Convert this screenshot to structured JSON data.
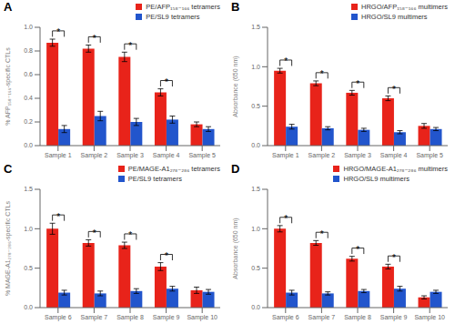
{
  "chart_data": [
    {
      "type": "bar",
      "title": "A",
      "ylabel": "% AFP₁₅₈₋₁₆₆-specific CTLs",
      "categories": [
        "Sample 1",
        "Sample 2",
        "Sample 3",
        "Sample 4",
        "Sample 5"
      ],
      "series": [
        {
          "name": "PE/AFP₁₅₈₋₁₆₆ tetramers",
          "color": "#e8231a",
          "values": [
            0.87,
            0.82,
            0.75,
            0.45,
            0.18
          ],
          "errors": [
            0.03,
            0.03,
            0.04,
            0.03,
            0.02
          ]
        },
        {
          "name": "PE/SL9 tetramers",
          "color": "#2255cc",
          "values": [
            0.14,
            0.25,
            0.2,
            0.22,
            0.14
          ],
          "errors": [
            0.03,
            0.04,
            0.03,
            0.03,
            0.02
          ]
        }
      ],
      "ylim": [
        0,
        1.0
      ],
      "yticks": [
        {
          "value": 0,
          "label": "0.0"
        },
        0.2,
        0.4,
        0.6,
        0.8,
        {
          "value": 1,
          "label": "1.0"
        }
      ],
      "legend": "upper right",
      "grid": false,
      "annotations": [
        {
          "category": "Sample 1",
          "text": "*"
        },
        {
          "category": "Sample 2",
          "text": "*"
        },
        {
          "category": "Sample 3",
          "text": "*"
        },
        {
          "category": "Sample 4",
          "text": "*"
        }
      ]
    },
    {
      "type": "bar",
      "title": "B",
      "ylabel": "Absorbance (650 nm)",
      "categories": [
        "Sample 1",
        "Sample 2",
        "Sample 3",
        "Sample 4",
        "Sample 5"
      ],
      "series": [
        {
          "name": "HRGO/AFP₁₅₈₋₁₆₆ multimers",
          "color": "#e8231a",
          "values": [
            0.95,
            0.79,
            0.67,
            0.6,
            0.25
          ],
          "errors": [
            0.03,
            0.03,
            0.03,
            0.03,
            0.03
          ]
        },
        {
          "name": "HRGO/SL9 multimers",
          "color": "#2255cc",
          "values": [
            0.24,
            0.22,
            0.2,
            0.17,
            0.21
          ],
          "errors": [
            0.03,
            0.02,
            0.02,
            0.02,
            0.02
          ]
        }
      ],
      "ylim": [
        0,
        1.5
      ],
      "yticks": [
        {
          "value": 0,
          "label": "0.0"
        },
        0.5,
        {
          "value": 1,
          "label": "1.0"
        },
        1.5
      ],
      "legend": "upper right",
      "grid": false,
      "annotations": [
        {
          "category": "Sample 1",
          "text": "*"
        },
        {
          "category": "Sample 2",
          "text": "*"
        },
        {
          "category": "Sample 3",
          "text": "*"
        },
        {
          "category": "Sample 4",
          "text": "*"
        }
      ]
    },
    {
      "type": "bar",
      "title": "C",
      "ylabel": "% MAGE-A1₂₇₈₋₂₈₆-specific CTLs",
      "categories": [
        "Sample 6",
        "Sample 7",
        "Sample 8",
        "Sample 9",
        "Sample 10"
      ],
      "series": [
        {
          "name": "PE/MAGE-A1₂₇₈₋₂₈₆ tetramers",
          "color": "#e8231a",
          "values": [
            1.0,
            0.82,
            0.79,
            0.52,
            0.22
          ],
          "errors": [
            0.07,
            0.04,
            0.04,
            0.05,
            0.04
          ]
        },
        {
          "name": "PE/SL9 tetramers",
          "color": "#2255cc",
          "values": [
            0.19,
            0.18,
            0.21,
            0.24,
            0.2
          ],
          "errors": [
            0.03,
            0.03,
            0.03,
            0.03,
            0.03
          ]
        }
      ],
      "ylim": [
        0,
        1.5
      ],
      "yticks": [
        {
          "value": 0,
          "label": "0.0"
        },
        0.5,
        {
          "value": 1,
          "label": "1.0"
        },
        1.5
      ],
      "legend": "upper right",
      "grid": false,
      "annotations": [
        {
          "category": "Sample 6",
          "text": "*"
        },
        {
          "category": "Sample 7",
          "text": "*"
        },
        {
          "category": "Sample 8",
          "text": "*"
        },
        {
          "category": "Sample 9",
          "text": "*"
        }
      ]
    },
    {
      "type": "bar",
      "title": "D",
      "ylabel": "Absorbance (650 nm)",
      "categories": [
        "Sample 6",
        "Sample 7",
        "Sample 8",
        "Sample 9",
        "Sample 10"
      ],
      "series": [
        {
          "name": "HRGO/MAGE-A1₂₇₈₋₂₈₆ multimers",
          "color": "#e8231a",
          "values": [
            1.0,
            0.82,
            0.62,
            0.52,
            0.13
          ],
          "errors": [
            0.04,
            0.03,
            0.03,
            0.03,
            0.02
          ]
        },
        {
          "name": "HRGO/SL9 multimers",
          "color": "#2255cc",
          "values": [
            0.19,
            0.18,
            0.21,
            0.24,
            0.2
          ],
          "errors": [
            0.03,
            0.02,
            0.02,
            0.03,
            0.02
          ]
        }
      ],
      "ylim": [
        0,
        1.5
      ],
      "yticks": [
        {
          "value": 0,
          "label": "0.0"
        },
        0.5,
        {
          "value": 1,
          "label": "1.0"
        },
        1.5
      ],
      "legend": "upper right",
      "grid": false,
      "annotations": [
        {
          "category": "Sample 6",
          "text": "*"
        },
        {
          "category": "Sample 7",
          "text": "*"
        },
        {
          "category": "Sample 8",
          "text": "*"
        },
        {
          "category": "Sample 9",
          "text": "*"
        }
      ]
    }
  ]
}
